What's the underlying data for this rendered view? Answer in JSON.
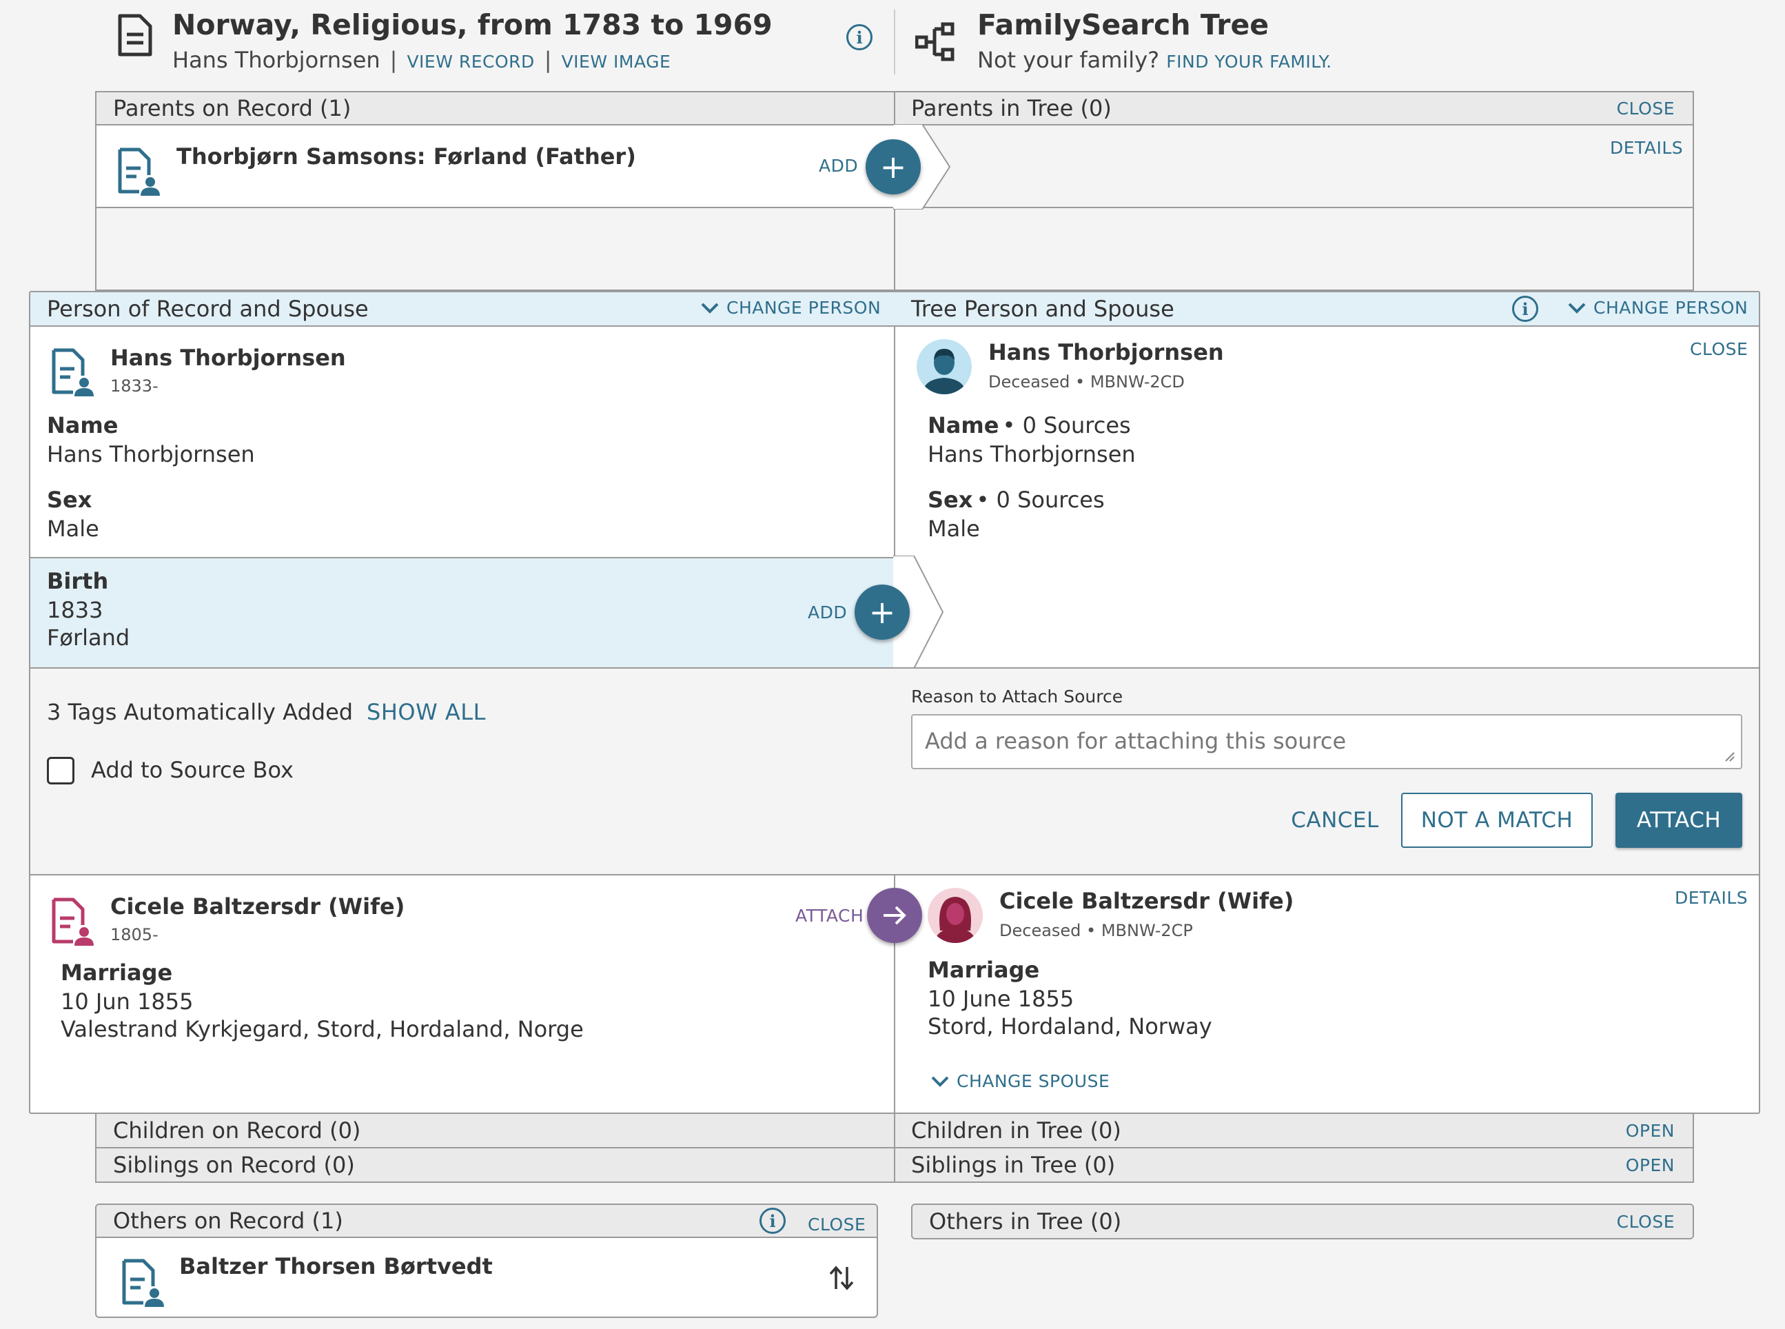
{
  "record_header": {
    "title": "Norway, Religious, from 1783 to 1969",
    "person": "Hans Thorbjornsen",
    "view_record": "VIEW RECORD",
    "view_image": "VIEW IMAGE",
    "icon": "document-icon"
  },
  "tree_header": {
    "title": "FamilySearch Tree",
    "not_your_family": "Not your family?",
    "find_family": "FIND YOUR FAMILY.",
    "icon": "tree-icon"
  },
  "parents": {
    "record_label": "Parents on Record (1)",
    "tree_label": "Parents in Tree (0)",
    "close": "CLOSE",
    "details": "DETAILS",
    "father_name": "Thorbjørn Samsons: Førland (Father)",
    "add": "ADD"
  },
  "person_section": {
    "record_label": "Person of Record and Spouse",
    "tree_label": "Tree Person and Spouse",
    "change_person": "CHANGE PERSON",
    "close": "CLOSE",
    "record_person": {
      "name": "Hans Thorbjornsen",
      "years": "1833-",
      "name_label": "Name",
      "name_value": "Hans Thorbjornsen",
      "sex_label": "Sex",
      "sex_value": "Male",
      "birth_label": "Birth",
      "birth_year": "1833",
      "birth_place": "Førland",
      "add": "ADD"
    },
    "tree_person": {
      "name": "Hans Thorbjornsen",
      "status": "Deceased • MBNW-2CD",
      "name_label": "Name",
      "name_sources": "• 0 Sources",
      "name_value": "Hans Thorbjornsen",
      "sex_label": "Sex",
      "sex_sources": "• 0 Sources",
      "sex_value": "Male"
    }
  },
  "attach_area": {
    "tags": "3 Tags Automatically Added",
    "show_all": "SHOW ALL",
    "source_box": "Add to Source Box",
    "reason_label": "Reason to Attach Source",
    "reason_placeholder": "Add a reason for attaching this source",
    "cancel": "CANCEL",
    "not_match": "NOT A MATCH",
    "attach": "ATTACH"
  },
  "spouse": {
    "record_name": "Cicele Baltzersdr (Wife)",
    "record_years": "1805-",
    "attach": "ATTACH",
    "marriage_label": "Marriage",
    "record_date": "10 Jun 1855",
    "record_place": "Valestrand Kyrkjegard, Stord, Hordaland, Norge",
    "tree_name": "Cicele Baltzersdr (Wife)",
    "tree_status": "Deceased • MBNW-2CP",
    "details": "DETAILS",
    "tree_date": "10 June 1855",
    "tree_place": "Stord, Hordaland, Norway",
    "change_spouse": "CHANGE SPOUSE"
  },
  "children": {
    "record_label": "Children on Record (0)",
    "tree_label": "Children in Tree (0)",
    "open": "OPEN"
  },
  "siblings": {
    "record_label": "Siblings on Record (0)",
    "tree_label": "Siblings in Tree (0)",
    "open": "OPEN"
  },
  "others": {
    "record_label": "Others on Record (1)",
    "tree_label": "Others in Tree (0)",
    "close": "CLOSE",
    "person_name": "Baltzer Thorsen Børtvedt"
  },
  "colors": {
    "accent": "#2f6f8c",
    "attach_purple": "#7a5a96",
    "female_icon": "#b83b6b",
    "blue_bar": "#e2f0f7"
  }
}
